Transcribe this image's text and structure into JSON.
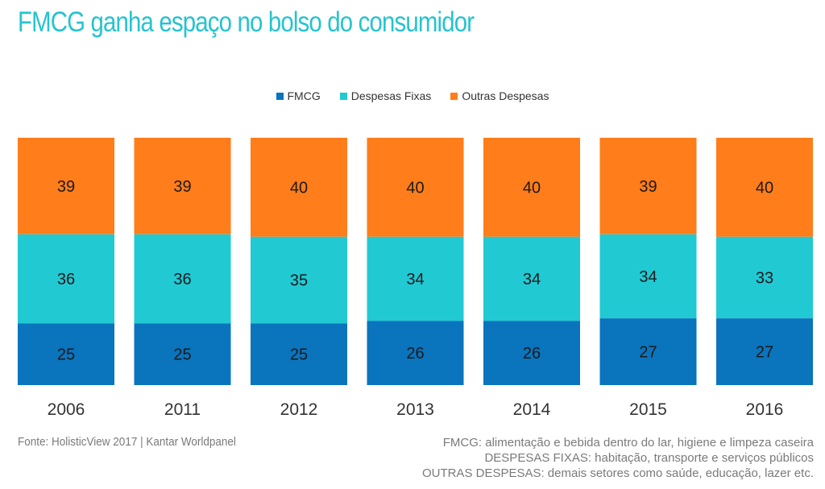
{
  "title": "FMCG ganha espaço no bolso do consumidor",
  "colors": {
    "fmcg": "#0a74bd",
    "fixas": "#21c9d3",
    "outras": "#ff7d1a",
    "title": "#25c3cf"
  },
  "legend": [
    {
      "label": "FMCG",
      "color": "#0a74bd"
    },
    {
      "label": "Despesas Fixas",
      "color": "#21c9d3"
    },
    {
      "label": "Outras Despesas",
      "color": "#ff7d1a"
    }
  ],
  "chart_data": {
    "type": "bar",
    "stacked": true,
    "categories": [
      "2006",
      "2011",
      "2012",
      "2013",
      "2014",
      "2015",
      "2016"
    ],
    "series": [
      {
        "name": "FMCG",
        "values": [
          25,
          25,
          25,
          26,
          26,
          27,
          27
        ]
      },
      {
        "name": "Despesas Fixas",
        "values": [
          36,
          36,
          35,
          34,
          34,
          34,
          33
        ]
      },
      {
        "name": "Outras Despesas",
        "values": [
          39,
          39,
          40,
          40,
          40,
          39,
          40
        ]
      }
    ],
    "legend_position": "top-center",
    "grid": false
  },
  "footer": {
    "source": "Fonte: HolisticView 2017 | Kantar Worldpanel",
    "notes": [
      "FMCG: alimentação e bebida dentro do lar, higiene e limpeza caseira",
      "DESPESAS FIXAS: habitação, transporte e serviços públicos",
      "OUTRAS DESPESAS: demais setores como saúde, educação, lazer etc."
    ]
  }
}
